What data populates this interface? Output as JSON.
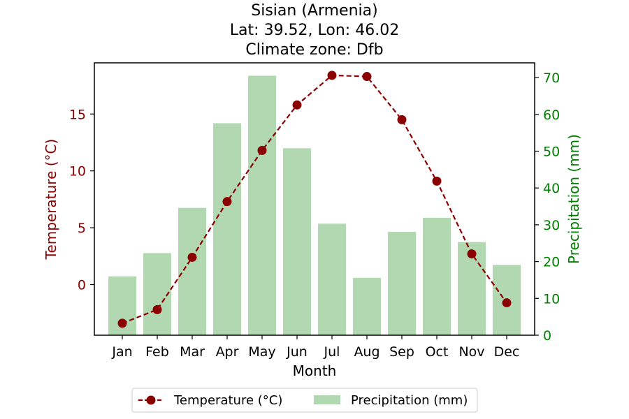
{
  "chart_data": {
    "type": "bar+line",
    "title": [
      "Sisian (Armenia)",
      "Lat: 39.52, Lon: 46.02",
      "Climate zone: Dfb"
    ],
    "xlabel": "Month",
    "categories": [
      "Jan",
      "Feb",
      "Mar",
      "Apr",
      "May",
      "Jun",
      "Jul",
      "Aug",
      "Sep",
      "Oct",
      "Nov",
      "Dec"
    ],
    "series": [
      {
        "name": "Temperature (°C)",
        "kind": "line",
        "axis": "left",
        "color": "#8b0000",
        "values": [
          -3.4,
          -2.2,
          2.4,
          7.3,
          11.8,
          15.8,
          18.4,
          18.3,
          14.5,
          9.1,
          2.7,
          -1.6
        ]
      },
      {
        "name": "Precipitation (mm)",
        "kind": "bar",
        "axis": "right",
        "color": "#b2d8b2",
        "values": [
          16,
          22.3,
          34.6,
          57.6,
          70.5,
          50.8,
          30.3,
          15.6,
          28.1,
          31.9,
          25.3,
          19.1
        ]
      }
    ],
    "y_left": {
      "label": "Temperature (°C)",
      "color": "#8b0000",
      "range": [
        -4.45,
        19.5
      ],
      "ticks": [
        0,
        5,
        10,
        15
      ]
    },
    "y_right": {
      "label": "Precipitation (mm)",
      "color": "#008000",
      "range": [
        0,
        74
      ],
      "ticks": [
        0,
        10,
        20,
        30,
        40,
        50,
        60,
        70
      ]
    },
    "grid": false,
    "legend_position": "bottom-center"
  }
}
